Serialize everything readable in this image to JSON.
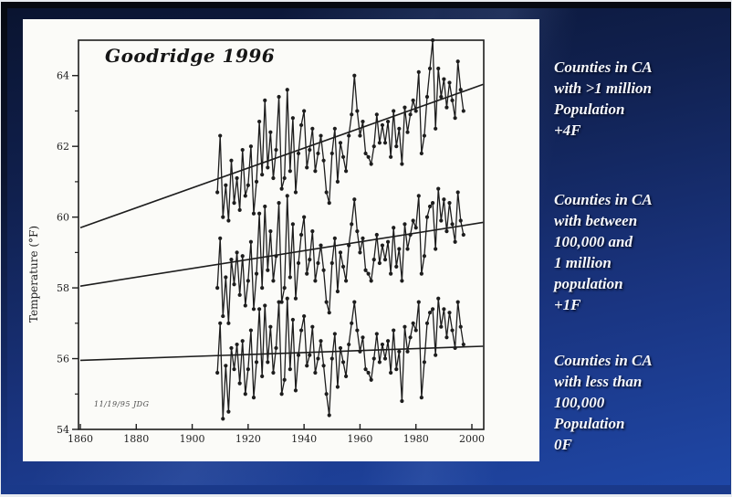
{
  "slide": {
    "figure_label": "Goodridge 1996",
    "stamp": "11/19/95 JDG",
    "annotations": [
      {
        "text": "Counties in CA\nwith >1 million\nPopulation\n+4F"
      },
      {
        "text": "Counties in CA\nwith between\n100,000 and\n1 million\npopulation\n+1F"
      },
      {
        "text": "Counties in CA\nwith less than\n100,000\nPopulation\n0F"
      }
    ],
    "colors": {
      "background_top": "#0a1430",
      "background_bottom": "#1f47a6",
      "panel": "#fbfbf8",
      "ink": "#1d1d1d",
      "annotation_text": "#f5f7fc"
    }
  },
  "chart_data": {
    "type": "line",
    "title": "Goodridge 1996",
    "xlabel": "",
    "ylabel": "Temperature (°F)",
    "xlim": [
      1860,
      2004
    ],
    "ylim": [
      54,
      65
    ],
    "x_ticks": [
      1860,
      1880,
      1900,
      1920,
      1940,
      1960,
      1980,
      2000
    ],
    "y_ticks_major": [
      54,
      56,
      58,
      60,
      62,
      64
    ],
    "y_ticks_minor": [
      55,
      57,
      59,
      61,
      63
    ],
    "grid": false,
    "legend": "none (labels shown as slide text at right)",
    "start_year": 1909,
    "series": [
      {
        "name": "Counties in CA with >1 million population (+4F trend)",
        "trend": {
          "x": [
            1860,
            2004
          ],
          "y": [
            59.7,
            63.75
          ]
        },
        "values": [
          60.7,
          62.3,
          60.0,
          60.9,
          59.9,
          61.6,
          60.4,
          61.1,
          60.2,
          61.9,
          60.6,
          60.9,
          62.0,
          60.1,
          61.0,
          62.7,
          61.2,
          63.3,
          61.4,
          62.4,
          61.1,
          61.9,
          63.4,
          60.8,
          61.1,
          63.6,
          61.3,
          62.8,
          60.7,
          61.8,
          62.6,
          63.0,
          61.4,
          61.9,
          62.5,
          61.3,
          61.8,
          62.3,
          61.6,
          60.7,
          60.4,
          61.8,
          62.5,
          61.0,
          62.1,
          61.7,
          61.3,
          62.3,
          62.9,
          64.0,
          63.0,
          62.3,
          62.7,
          61.8,
          61.7,
          61.5,
          62.0,
          62.9,
          62.1,
          62.6,
          62.1,
          62.7,
          61.7,
          63.0,
          62.0,
          62.5,
          61.5,
          63.1,
          62.4,
          62.9,
          63.3,
          63.0,
          64.1,
          61.8,
          62.3,
          63.4,
          64.2,
          65.0,
          62.5,
          64.2,
          63.4,
          63.9,
          63.1,
          63.8,
          63.3,
          62.8,
          64.4,
          63.6,
          63.0
        ]
      },
      {
        "name": "Counties in CA with between 100,000 and 1 million population (+1F trend)",
        "trend": {
          "x": [
            1860,
            2004
          ],
          "y": [
            58.05,
            59.85
          ]
        },
        "values": [
          58.0,
          59.4,
          57.2,
          58.3,
          57.0,
          58.8,
          58.1,
          59.0,
          57.8,
          58.9,
          57.5,
          58.2,
          59.3,
          57.4,
          58.4,
          60.1,
          58.0,
          60.3,
          58.5,
          59.6,
          58.2,
          58.9,
          60.4,
          57.6,
          58.0,
          60.6,
          58.3,
          59.8,
          57.7,
          58.7,
          59.5,
          60.0,
          58.4,
          58.8,
          59.6,
          58.2,
          58.7,
          59.2,
          58.5,
          57.6,
          57.3,
          58.7,
          59.4,
          57.9,
          59.0,
          58.6,
          58.2,
          59.2,
          59.8,
          60.5,
          59.6,
          59.0,
          59.4,
          58.5,
          58.4,
          58.2,
          58.8,
          59.5,
          58.7,
          59.2,
          58.8,
          59.3,
          58.4,
          59.7,
          58.6,
          59.1,
          58.2,
          59.8,
          59.1,
          59.5,
          59.9,
          59.7,
          60.6,
          58.4,
          58.9,
          60.0,
          60.3,
          60.4,
          59.1,
          60.8,
          59.9,
          60.5,
          59.6,
          60.4,
          59.8,
          59.3,
          60.7,
          59.9,
          59.5
        ]
      },
      {
        "name": "Counties in CA with less than 100,000 population (0F trend)",
        "trend": {
          "x": [
            1860,
            2004
          ],
          "y": [
            55.95,
            56.35
          ]
        },
        "values": [
          55.6,
          57.0,
          54.3,
          55.8,
          54.5,
          56.3,
          55.7,
          56.4,
          55.3,
          56.5,
          55.0,
          55.7,
          56.8,
          54.9,
          55.9,
          57.4,
          55.5,
          57.5,
          55.9,
          56.9,
          55.6,
          56.3,
          57.6,
          55.0,
          55.4,
          57.7,
          55.7,
          57.1,
          55.1,
          56.1,
          56.8,
          57.2,
          55.8,
          56.1,
          56.9,
          55.6,
          56.0,
          56.5,
          55.8,
          55.0,
          54.4,
          56.0,
          56.7,
          55.2,
          56.3,
          55.9,
          55.5,
          56.4,
          57.0,
          57.6,
          56.8,
          56.2,
          56.6,
          55.7,
          55.6,
          55.4,
          56.0,
          56.7,
          55.9,
          56.4,
          56.0,
          56.5,
          55.6,
          56.8,
          55.7,
          56.2,
          54.8,
          56.9,
          56.2,
          56.6,
          57.0,
          56.8,
          57.6,
          54.9,
          55.9,
          57.0,
          57.3,
          57.4,
          56.1,
          57.7,
          56.9,
          57.4,
          56.6,
          57.3,
          56.8,
          56.3,
          57.6,
          56.9,
          56.4
        ]
      }
    ]
  }
}
